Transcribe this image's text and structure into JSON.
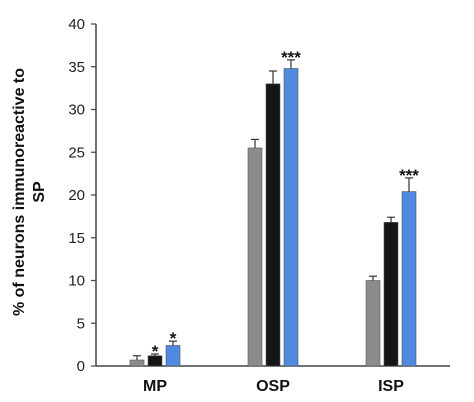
{
  "chart_data": {
    "type": "bar",
    "title": "",
    "xlabel": "",
    "ylabel_line1": "% of neurons immunoreactive to",
    "ylabel_line2": "SP",
    "ylim": [
      0,
      40
    ],
    "yticks": [
      0,
      5,
      10,
      15,
      20,
      25,
      30,
      35,
      40
    ],
    "grid": false,
    "categories": [
      "MP",
      "OSP",
      "ISP"
    ],
    "series": [
      {
        "values": [
          0.7,
          25.5,
          10.0
        ],
        "errors": [
          0.5,
          1.0,
          0.5
        ],
        "color": "#8c8c8c"
      },
      {
        "values": [
          1.2,
          33.0,
          16.8
        ],
        "errors": [
          0.2,
          1.5,
          0.6
        ],
        "color": "#151515"
      },
      {
        "values": [
          2.4,
          34.8,
          20.4
        ],
        "errors": [
          0.5,
          1.0,
          1.6
        ],
        "color": "#4f8ae0"
      }
    ],
    "annotations": [
      {
        "category": 0,
        "series": 1,
        "text": "*"
      },
      {
        "category": 0,
        "series": 2,
        "text": "*"
      },
      {
        "category": 1,
        "series": 2,
        "text": "***"
      },
      {
        "category": 2,
        "series": 2,
        "text": "***"
      }
    ]
  }
}
